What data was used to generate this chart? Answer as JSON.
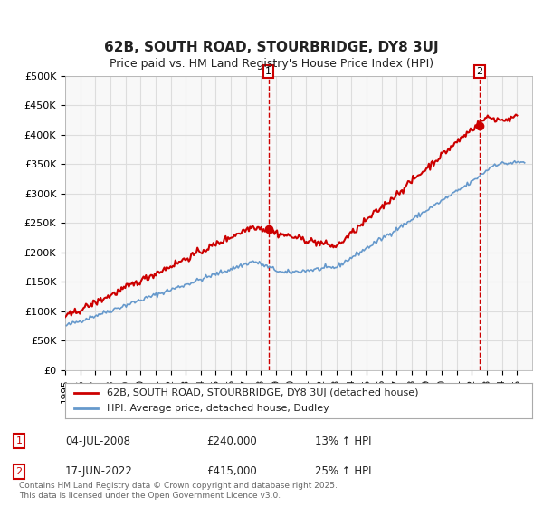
{
  "title": "62B, SOUTH ROAD, STOURBRIDGE, DY8 3UJ",
  "subtitle": "Price paid vs. HM Land Registry's House Price Index (HPI)",
  "ylabel_ticks": [
    "£0",
    "£50K",
    "£100K",
    "£150K",
    "£200K",
    "£250K",
    "£300K",
    "£350K",
    "£400K",
    "£450K",
    "£500K"
  ],
  "ytick_values": [
    0,
    50000,
    100000,
    150000,
    200000,
    250000,
    300000,
    350000,
    400000,
    450000,
    500000
  ],
  "line_color_red": "#cc0000",
  "line_color_blue": "#6699cc",
  "bg_color": "#ffffff",
  "grid_color": "#dddddd",
  "annotation1": {
    "label": "1",
    "date_str": "04-JUL-2008",
    "price": 240000,
    "hpi_pct": "13% ↑ HPI",
    "x_year": 2008.5
  },
  "annotation2": {
    "label": "2",
    "date_str": "17-JUN-2022",
    "price": 415000,
    "hpi_pct": "25% ↑ HPI",
    "x_year": 2022.5
  },
  "legend_red": "62B, SOUTH ROAD, STOURBRIDGE, DY8 3UJ (detached house)",
  "legend_blue": "HPI: Average price, detached house, Dudley",
  "footer": "Contains HM Land Registry data © Crown copyright and database right 2025.\nThis data is licensed under the Open Government Licence v3.0.",
  "xmin": 1995,
  "xmax": 2026,
  "ymin": 0,
  "ymax": 500000
}
